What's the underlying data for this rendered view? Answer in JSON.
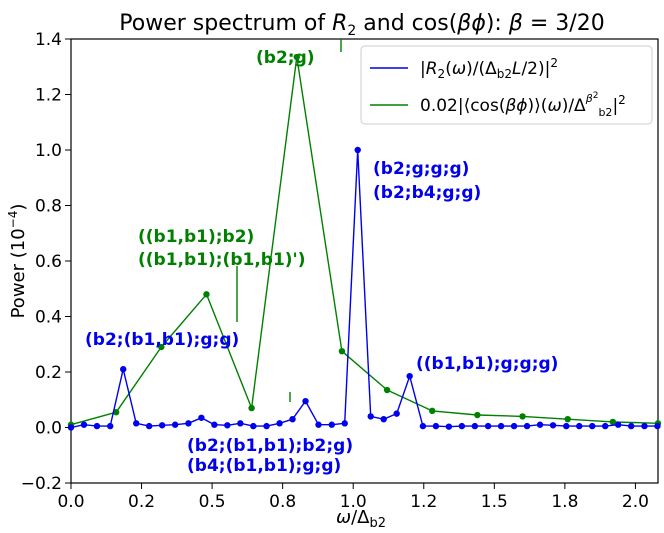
{
  "chart_data": {
    "type": "line",
    "title": "Power spectrum of R₂ and  cos(βϕ): β = 3/20",
    "xlabel": "ω/Δ_b2",
    "ylabel": "Power  (10⁻⁴)",
    "xlim": [
      0.0,
      2.08
    ],
    "ylim": [
      -0.2,
      1.4
    ],
    "x_ticks": [
      "0.0",
      "0.2",
      "0.5",
      "0.8",
      "1.0",
      "1.2",
      "1.5",
      "1.8",
      "2.0"
    ],
    "x_tick_values": [
      0.0,
      0.25,
      0.5,
      0.75,
      1.0,
      1.25,
      1.5,
      1.75,
      2.0
    ],
    "y_ticks": [
      "−0.2",
      "0.0",
      "0.2",
      "0.4",
      "0.6",
      "0.8",
      "1.0",
      "1.2",
      "1.4"
    ],
    "y_tick_values": [
      -0.2,
      0.0,
      0.2,
      0.4,
      0.6,
      0.8,
      1.0,
      1.2,
      1.4
    ],
    "grid": false,
    "legend_position": "top-right",
    "series": [
      {
        "name": "|R₂(ω)/(Δ_b2 L/2)|²",
        "color": "#0000ee",
        "x": [
          0.0,
          0.046,
          0.092,
          0.139,
          0.185,
          0.231,
          0.277,
          0.323,
          0.369,
          0.416,
          0.462,
          0.508,
          0.554,
          0.6,
          0.646,
          0.693,
          0.739,
          0.785,
          0.831,
          0.877,
          0.924,
          0.97,
          1.016,
          1.062,
          1.108,
          1.154,
          1.2,
          1.247,
          1.293,
          1.339,
          1.385,
          1.431,
          1.478,
          1.524,
          1.57,
          1.616,
          1.662,
          1.708,
          1.755,
          1.801,
          1.847,
          1.893,
          1.939,
          1.985,
          2.032,
          2.078
        ],
        "values": [
          0.0,
          0.01,
          0.005,
          0.005,
          0.21,
          0.015,
          0.005,
          0.008,
          0.01,
          0.015,
          0.035,
          0.01,
          0.008,
          0.015,
          0.005,
          0.005,
          0.015,
          0.03,
          0.095,
          0.01,
          0.01,
          0.015,
          1.0,
          0.04,
          0.03,
          0.05,
          0.185,
          0.005,
          0.005,
          0.003,
          0.005,
          0.005,
          0.005,
          0.005,
          0.005,
          0.005,
          0.01,
          0.008,
          0.005,
          0.005,
          0.005,
          0.005,
          0.01,
          0.005,
          0.005,
          0.005
        ]
      },
      {
        "name": "0.02|⟨cos(βϕ)⟩(ω)/Δ²_b2^β²|²",
        "color": "#008000",
        "x": [
          0.0,
          0.16,
          0.32,
          0.48,
          0.64,
          0.8,
          0.96,
          1.12,
          1.28,
          1.44,
          1.6,
          1.76,
          1.92,
          2.08
        ],
        "values": [
          0.01,
          0.055,
          0.29,
          0.48,
          0.07,
          1.335,
          0.275,
          0.135,
          0.06,
          0.045,
          0.04,
          0.03,
          0.02,
          0.015
        ]
      }
    ],
    "annotations": {
      "b2g": "(b2;g)",
      "b2ggg": "(b2;g;g;g)",
      "b2b4gg": "(b2;b4;g;g)",
      "b1b1b2": "((b1,b1);b2)",
      "b1b1b1b1": "((b1,b1);(b1,b1)')",
      "b2b1b1gg": "(b2;(b1,b1);g;g)",
      "b1b1ggg": "((b1,b1);g;g;g)",
      "b2b1b1b2g": "(b2;(b1,b1);b2;g)",
      "b4b1b1gg": "(b4;(b1,b1);g;g)"
    }
  }
}
